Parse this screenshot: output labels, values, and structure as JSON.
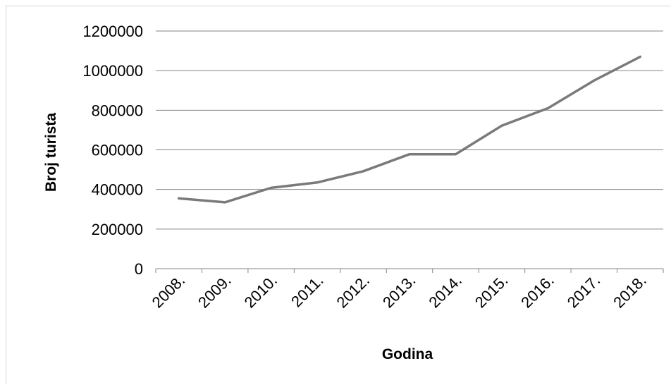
{
  "chart_data": {
    "type": "line",
    "title": "",
    "xlabel": "Godina",
    "ylabel": "Broj turista",
    "categories": [
      "2008.",
      "2009.",
      "2010.",
      "2011.",
      "2012.",
      "2013.",
      "2014.",
      "2015.",
      "2016.",
      "2017.",
      "2018."
    ],
    "series": [
      {
        "values": [
          355000,
          335000,
          408000,
          435000,
          492000,
          578000,
          578000,
          722000,
          810000,
          950000,
          1070000
        ]
      }
    ],
    "yticks": [
      "0",
      "200000",
      "400000",
      "600000",
      "800000",
      "1000000",
      "1200000"
    ],
    "ylim": [
      0,
      1200000
    ],
    "grid": true,
    "legend": "none",
    "colors": {
      "line": "#7a7a7a",
      "grid": "#868686",
      "axis": "#868686"
    }
  }
}
